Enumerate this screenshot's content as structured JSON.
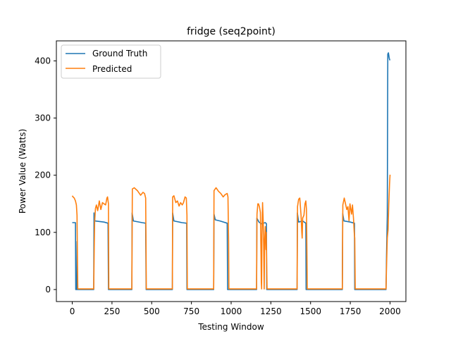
{
  "chart_data": {
    "type": "line",
    "title": "fridge (seq2point)",
    "xlabel": "Testing Window",
    "ylabel": "Power Value (Watts)",
    "xlim": [
      -100,
      2100
    ],
    "ylim": [
      -21,
      435
    ],
    "xticks": [
      0,
      250,
      500,
      750,
      1000,
      1250,
      1500,
      1750,
      2000
    ],
    "yticks": [
      0,
      100,
      200,
      300,
      400
    ],
    "grid": false,
    "legend": "top-left",
    "series": [
      {
        "name": "Ground Truth",
        "color": "#1f77b4",
        "points": [
          [
            0,
            117
          ],
          [
            20,
            117
          ],
          [
            22,
            0
          ],
          [
            28,
            0
          ],
          [
            30,
            84
          ],
          [
            32,
            0
          ],
          [
            135,
            0
          ],
          [
            137,
            134
          ],
          [
            142,
            120
          ],
          [
            200,
            118
          ],
          [
            225,
            116
          ],
          [
            228,
            0
          ],
          [
            375,
            0
          ],
          [
            377,
            134
          ],
          [
            385,
            120
          ],
          [
            440,
            117
          ],
          [
            462,
            116
          ],
          [
            465,
            0
          ],
          [
            630,
            0
          ],
          [
            632,
            134
          ],
          [
            640,
            120
          ],
          [
            690,
            117
          ],
          [
            720,
            116
          ],
          [
            722,
            0
          ],
          [
            890,
            0
          ],
          [
            892,
            132
          ],
          [
            900,
            122
          ],
          [
            930,
            120
          ],
          [
            975,
            116
          ],
          [
            978,
            0
          ],
          [
            1160,
            0
          ],
          [
            1162,
            125
          ],
          [
            1175,
            118
          ],
          [
            1190,
            115
          ],
          [
            1215,
            117
          ],
          [
            1222,
            115
          ],
          [
            1224,
            0
          ],
          [
            1415,
            0
          ],
          [
            1417,
            134
          ],
          [
            1425,
            118
          ],
          [
            1450,
            120
          ],
          [
            1470,
            116
          ],
          [
            1472,
            0
          ],
          [
            1700,
            0
          ],
          [
            1702,
            133
          ],
          [
            1710,
            120
          ],
          [
            1750,
            118
          ],
          [
            1776,
            116
          ],
          [
            1778,
            0
          ],
          [
            1975,
            0
          ],
          [
            1978,
            60
          ],
          [
            1983,
            130
          ],
          [
            1986,
            412
          ],
          [
            1990,
            414
          ],
          [
            1995,
            405
          ],
          [
            1998,
            402
          ],
          [
            2000,
            401
          ]
        ]
      },
      {
        "name": "Predicted",
        "color": "#ff7f0e",
        "points": [
          [
            0,
            164
          ],
          [
            5,
            162
          ],
          [
            12,
            160
          ],
          [
            20,
            155
          ],
          [
            26,
            148
          ],
          [
            30,
            130
          ],
          [
            33,
            40
          ],
          [
            35,
            1
          ],
          [
            135,
            1
          ],
          [
            138,
            72
          ],
          [
            141,
            118
          ],
          [
            146,
            142
          ],
          [
            152,
            148
          ],
          [
            160,
            138
          ],
          [
            170,
            155
          ],
          [
            180,
            140
          ],
          [
            190,
            152
          ],
          [
            200,
            150
          ],
          [
            210,
            148
          ],
          [
            218,
            160
          ],
          [
            222,
            162
          ],
          [
            228,
            150
          ],
          [
            230,
            1
          ],
          [
            375,
            1
          ],
          [
            378,
            176
          ],
          [
            390,
            178
          ],
          [
            410,
            173
          ],
          [
            430,
            165
          ],
          [
            445,
            170
          ],
          [
            455,
            168
          ],
          [
            462,
            160
          ],
          [
            464,
            82
          ],
          [
            466,
            1
          ],
          [
            630,
            1
          ],
          [
            632,
            162
          ],
          [
            640,
            164
          ],
          [
            652,
            152
          ],
          [
            662,
            155
          ],
          [
            672,
            146
          ],
          [
            682,
            152
          ],
          [
            692,
            148
          ],
          [
            700,
            152
          ],
          [
            710,
            162
          ],
          [
            718,
            160
          ],
          [
            722,
            130
          ],
          [
            724,
            1
          ],
          [
            890,
            1
          ],
          [
            892,
            173
          ],
          [
            905,
            178
          ],
          [
            920,
            172
          ],
          [
            935,
            168
          ],
          [
            950,
            162
          ],
          [
            962,
            166
          ],
          [
            975,
            168
          ],
          [
            980,
            162
          ],
          [
            984,
            85
          ],
          [
            986,
            1
          ],
          [
            1160,
            1
          ],
          [
            1163,
            132
          ],
          [
            1168,
            150
          ],
          [
            1172,
            150
          ],
          [
            1178,
            145
          ],
          [
            1184,
            135
          ],
          [
            1188,
            60
          ],
          [
            1190,
            12
          ],
          [
            1192,
            1
          ],
          [
            1194,
            95
          ],
          [
            1198,
            152
          ],
          [
            1202,
            120
          ],
          [
            1205,
            75
          ],
          [
            1208,
            1
          ],
          [
            1211,
            88
          ],
          [
            1215,
            110
          ],
          [
            1219,
            70
          ],
          [
            1221,
            100
          ],
          [
            1224,
            40
          ],
          [
            1226,
            1
          ],
          [
            1415,
            1
          ],
          [
            1418,
            145
          ],
          [
            1425,
            158
          ],
          [
            1432,
            160
          ],
          [
            1440,
            130
          ],
          [
            1445,
            100
          ],
          [
            1447,
            90
          ],
          [
            1450,
            125
          ],
          [
            1458,
            130
          ],
          [
            1465,
            150
          ],
          [
            1470,
            155
          ],
          [
            1474,
            140
          ],
          [
            1477,
            70
          ],
          [
            1479,
            1
          ],
          [
            1700,
            1
          ],
          [
            1703,
            148
          ],
          [
            1712,
            160
          ],
          [
            1720,
            150
          ],
          [
            1728,
            140
          ],
          [
            1735,
            145
          ],
          [
            1742,
            120
          ],
          [
            1748,
            150
          ],
          [
            1758,
            132
          ],
          [
            1764,
            148
          ],
          [
            1770,
            125
          ],
          [
            1775,
            100
          ],
          [
            1778,
            90
          ],
          [
            1781,
            1
          ],
          [
            1975,
            1
          ],
          [
            1978,
            40
          ],
          [
            1983,
            90
          ],
          [
            1988,
            105
          ],
          [
            1992,
            150
          ],
          [
            1997,
            185
          ],
          [
            2000,
            201
          ]
        ]
      }
    ]
  }
}
